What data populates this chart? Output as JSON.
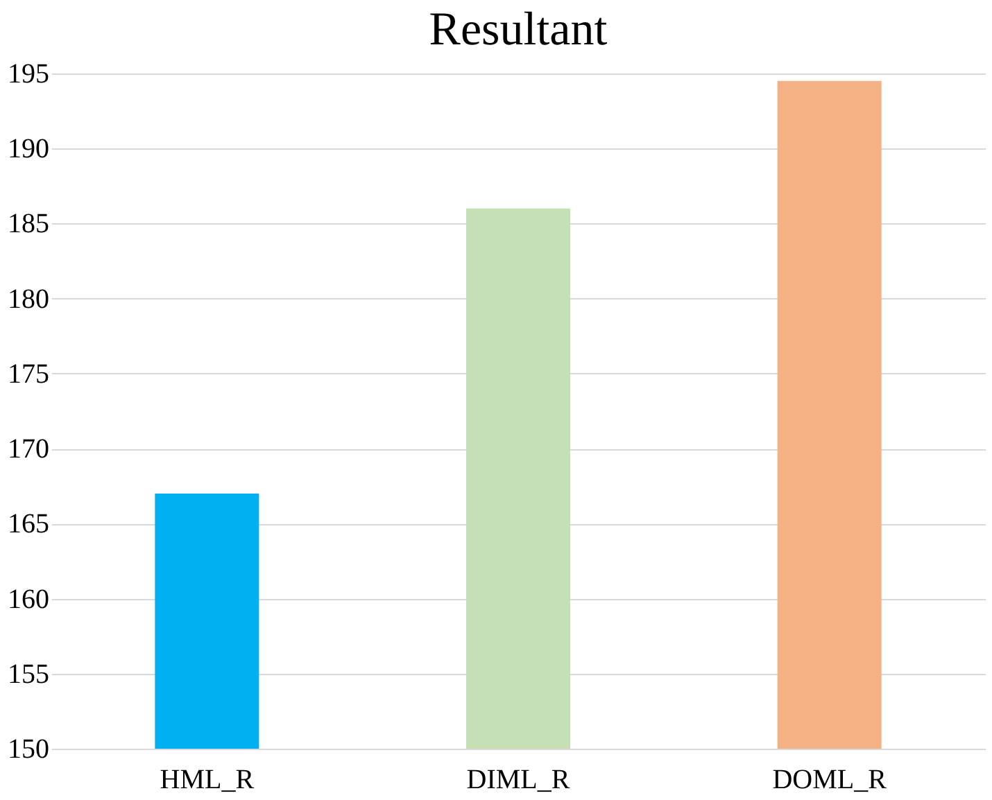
{
  "chart_data": {
    "type": "bar",
    "title": "Resultant",
    "categories": [
      "HML_R",
      "DIML_R",
      "DOML_R"
    ],
    "values": [
      167,
      186,
      194.5
    ],
    "colors": [
      "#00b0f0",
      "#c5e0b4",
      "#f4b183"
    ],
    "ylim": [
      150,
      195
    ],
    "yticks": [
      150,
      155,
      160,
      165,
      170,
      175,
      180,
      185,
      190,
      195
    ],
    "grid": "y"
  }
}
